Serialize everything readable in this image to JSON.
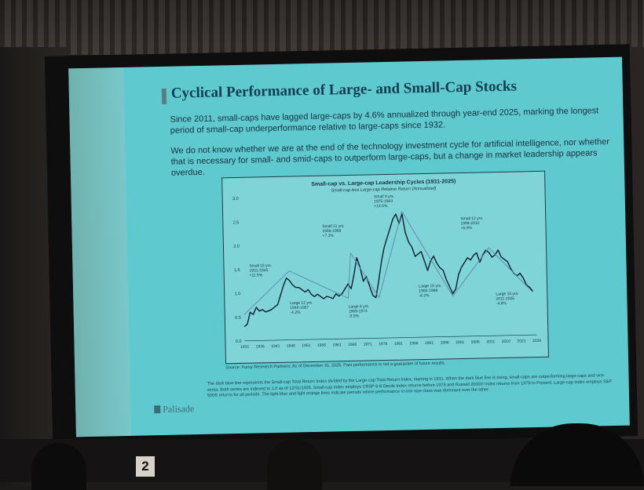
{
  "slide": {
    "title": "Cyclical Performance of Large- and Small-Cap Stocks",
    "para1": "Since 2011, small-caps have lagged large-caps by 4.6% annualized through year-end 2025, marking the longest period of small-cap underperformance relative to large-caps since 1932.",
    "para2": "We do not know whether we are at the end of the technology investment cycle for artificial intelligence, nor whether that is necessary for small- and smid-caps to outperform large-caps, but a change in market leadership appears overdue.",
    "source": "Source: Furey Research Partners; As of December 31, 2025. Past performance is not a guarantee of future results.",
    "footnote": "The dark blue line represents the Small-cap Total Return Index divided by the Large-cap Total Return Index, starting in 1931. When the dark blue line is rising, small-caps are outperforming large-caps and vice versa. Both series are indexed to 1.0 as of 12/31/1925. Small-cap index employs CRSP 6-8 Decile Index returns before 1979 and Russell 2000® Index returns from 1979 to Present. Large-cap index employs S&P 500® returns for all periods. The light blue and light orange lines indicate periods where performance in one size class was dominant over the other.",
    "logo": "Palisade",
    "seat_number": "2"
  },
  "chart_data": {
    "type": "line",
    "title": "Small-cap vs. Large-cap Leadership Cycles (1931-2025)",
    "subtitle": "Small-cap less Large-cap Relative Return (Annualized)",
    "xlabel": "",
    "ylabel": "",
    "ylim": [
      0,
      3.0
    ],
    "xlim": [
      1931,
      2026
    ],
    "yticks": [
      "0.0",
      "0.5",
      "1.0",
      "1.5",
      "2.0",
      "2.5",
      "3.0"
    ],
    "xticks": [
      "1931",
      "1936",
      "1941",
      "1946",
      "1951",
      "1956",
      "1961",
      "1966",
      "1971",
      "1976",
      "1981",
      "1986",
      "1991",
      "1996",
      "2001",
      "2006",
      "2011",
      "2016",
      "2021",
      "2026"
    ],
    "grid": false,
    "series": [
      {
        "name": "",
        "color": "#0f1e2c",
        "x": [
          1931,
          1932,
          1933,
          1934,
          1935,
          1936,
          1937,
          1938,
          1939,
          1940,
          1941,
          1942,
          1943,
          1944,
          1945,
          1946,
          1947,
          1948,
          1949,
          1950,
          1951,
          1952,
          1953,
          1954,
          1955,
          1956,
          1957,
          1958,
          1959,
          1960,
          1961,
          1962,
          1963,
          1964,
          1965,
          1966,
          1967,
          1968,
          1969,
          1970,
          1971,
          1972,
          1973,
          1974,
          1975,
          1976,
          1977,
          1978,
          1979,
          1980,
          1981,
          1982,
          1983,
          1984,
          1985,
          1986,
          1987,
          1988,
          1989,
          1990,
          1991,
          1992,
          1993,
          1994,
          1995,
          1996,
          1997,
          1998,
          1999,
          2000,
          2001,
          2002,
          2003,
          2004,
          2005,
          2006,
          2007,
          2008,
          2009,
          2010,
          2011,
          2012,
          2013,
          2014,
          2015,
          2016,
          2017,
          2018,
          2019,
          2020,
          2021,
          2022,
          2023,
          2024,
          2025
        ],
        "y": [
          0.3,
          0.35,
          0.6,
          0.55,
          0.7,
          0.62,
          0.65,
          0.6,
          0.62,
          0.65,
          0.7,
          0.75,
          0.95,
          1.15,
          1.3,
          1.25,
          1.15,
          1.1,
          1.1,
          1.05,
          1.0,
          1.05,
          0.95,
          0.9,
          0.95,
          0.9,
          0.85,
          0.9,
          0.88,
          0.85,
          0.95,
          0.9,
          0.95,
          1.05,
          1.15,
          1.05,
          1.35,
          1.7,
          1.5,
          1.2,
          1.3,
          1.1,
          0.9,
          0.85,
          1.2,
          1.6,
          1.9,
          2.1,
          2.3,
          2.5,
          2.6,
          2.4,
          2.6,
          2.2,
          2.0,
          1.9,
          1.7,
          1.75,
          1.8,
          1.6,
          1.4,
          1.6,
          1.7,
          1.55,
          1.45,
          1.4,
          1.2,
          1.05,
          0.9,
          1.0,
          1.3,
          1.45,
          1.55,
          1.65,
          1.6,
          1.7,
          1.75,
          1.55,
          1.7,
          1.8,
          1.75,
          1.65,
          1.7,
          1.8,
          1.65,
          1.6,
          1.55,
          1.4,
          1.3,
          1.25,
          1.3,
          1.2,
          1.05,
          1.0,
          0.92
        ]
      },
      {
        "name": "",
        "color": "#5f86a8",
        "x": [
          1931,
          1946,
          1965,
          1966,
          1975,
          1983,
          1999,
          2011,
          2025
        ],
        "y": [
          0.55,
          1.45,
          0.85,
          1.8,
          0.85,
          2.65,
          0.85,
          1.85,
          0.9
        ]
      }
    ],
    "annotations": [
      {
        "x": 1933,
        "y": 1.55,
        "lines": [
          "Small 15 yrs.",
          "1931-1945",
          "+11.5%"
        ]
      },
      {
        "x": 1946,
        "y": 0.75,
        "lines": [
          "Large 12 yrs.",
          "1946-1957",
          "-4.2%"
        ]
      },
      {
        "x": 1957,
        "y": 2.35,
        "lines": [
          "Small 11 yrs.",
          "1958-1968",
          "+7.3%"
        ]
      },
      {
        "x": 1965,
        "y": 0.65,
        "lines": [
          "Large 6 yrs.",
          "1969-1974",
          "-9.5%"
        ]
      },
      {
        "x": 1974,
        "y": 2.95,
        "lines": [
          "Small 9 yrs.",
          "1975-1983",
          "+14.5%"
        ]
      },
      {
        "x": 1988,
        "y": 1.05,
        "lines": [
          "Large 15 yrs.",
          "1984-1998",
          "-6.2%"
        ]
      },
      {
        "x": 2002,
        "y": 2.45,
        "lines": [
          "Small 12 yrs.",
          "1999-2010",
          "+5.0%"
        ]
      },
      {
        "x": 2013,
        "y": 0.85,
        "lines": [
          "Large 15 yrs.",
          "2011-2025",
          "-4.6%"
        ]
      }
    ]
  }
}
